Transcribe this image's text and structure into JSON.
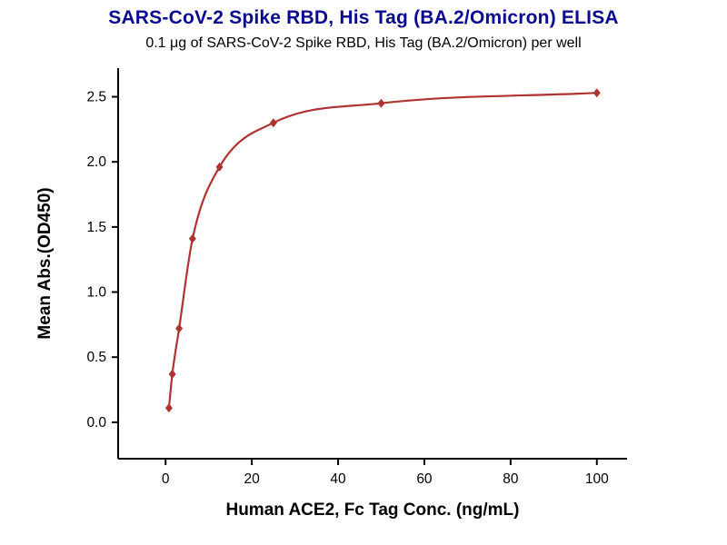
{
  "header": {
    "title": "SARS-CoV-2 Spike RBD, His Tag (BA.2/Omicron) ELISA",
    "subtitle": "0.1 μg of SARS-CoV-2 Spike RBD, His Tag (BA.2/Omicron) per well"
  },
  "colors": {
    "title": "#0b0b8f",
    "series": "#ae3431",
    "axis": "#000000"
  },
  "chart_data": {
    "type": "scatter",
    "title": "SARS-CoV-2 Spike RBD, His Tag (BA.2/Omicron) ELISA",
    "subtitle": "0.1 μg of SARS-CoV-2 Spike RBD, His Tag (BA.2/Omicron) per well",
    "xlabel": "Human ACE2, Fc Tag Conc. (ng/mL)",
    "ylabel": "Mean Abs.(OD450)",
    "x": [
      0.78,
      1.56,
      3.13,
      6.25,
      12.5,
      25,
      50,
      100
    ],
    "y": [
      0.11,
      0.37,
      0.72,
      1.41,
      1.96,
      2.3,
      2.45,
      2.53
    ],
    "x_ticks": [
      0,
      20,
      40,
      60,
      80,
      100
    ],
    "y_ticks": [
      0.0,
      0.5,
      1.0,
      1.5,
      2.0,
      2.5
    ],
    "xlim": [
      -11,
      107
    ],
    "ylim": [
      -0.28,
      2.72
    ],
    "marker": "diamond",
    "fit": "4PL sigmoidal curve",
    "grid": false,
    "legend": "none"
  }
}
